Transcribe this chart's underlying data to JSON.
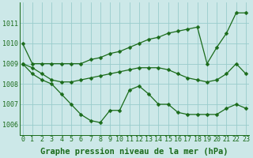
{
  "series": [
    {
      "x": [
        0,
        1,
        2,
        3,
        4,
        5,
        6,
        7,
        8,
        9,
        10,
        11,
        12,
        13,
        14,
        15,
        16,
        17,
        18,
        19,
        20,
        21,
        22,
        23
      ],
      "y": [
        1010.0,
        1009.0,
        1009.0,
        1009.0,
        1009.0,
        1009.0,
        1009.0,
        1009.2,
        1009.3,
        1009.5,
        1009.6,
        1009.8,
        1010.0,
        1010.2,
        1010.3,
        1010.5,
        1010.6,
        1010.7,
        1010.8,
        1009.0,
        1009.8,
        1010.5,
        1011.5,
        1011.5
      ]
    },
    {
      "x": [
        0,
        1,
        2,
        3,
        4,
        5,
        6,
        7,
        8,
        9,
        10,
        11,
        12,
        13,
        14,
        15,
        16,
        17,
        18,
        19,
        20,
        21,
        22,
        23
      ],
      "y": [
        1009.0,
        1008.8,
        1008.5,
        1008.2,
        1008.1,
        1008.1,
        1008.2,
        1008.3,
        1008.4,
        1008.5,
        1008.6,
        1008.7,
        1008.8,
        1008.8,
        1008.8,
        1008.7,
        1008.5,
        1008.3,
        1008.2,
        1008.1,
        1008.2,
        1008.5,
        1009.0,
        1008.5
      ]
    },
    {
      "x": [
        0,
        1,
        2,
        3,
        4,
        5,
        6,
        7,
        8,
        9,
        10,
        11,
        12,
        13,
        14,
        15,
        16,
        17,
        18,
        19,
        20,
        21,
        22,
        23
      ],
      "y": [
        1009.0,
        1008.5,
        1008.2,
        1008.0,
        1007.5,
        1007.0,
        1006.5,
        1006.2,
        1006.1,
        1006.7,
        1006.7,
        1007.7,
        1007.9,
        1007.5,
        1007.0,
        1007.0,
        1006.6,
        1006.5,
        1006.5,
        1006.5,
        1006.5,
        1006.8,
        1007.0,
        1006.8
      ]
    }
  ],
  "line_color": "#1a6b1a",
  "marker": "D",
  "marker_size": 2.5,
  "bg_color": "#cce8e8",
  "grid_color": "#99cccc",
  "ylim": [
    1005.5,
    1012.0
  ],
  "yticks": [
    1006,
    1007,
    1008,
    1009,
    1010,
    1011
  ],
  "xlim": [
    -0.3,
    23.3
  ],
  "xticks": [
    0,
    1,
    2,
    3,
    4,
    5,
    6,
    7,
    8,
    9,
    10,
    11,
    12,
    13,
    14,
    15,
    16,
    17,
    18,
    19,
    20,
    21,
    22,
    23
  ],
  "xlabel": "Graphe pression niveau de la mer (hPa)",
  "xlabel_fontsize": 7.5,
  "tick_fontsize": 6.0,
  "line_width": 0.9
}
